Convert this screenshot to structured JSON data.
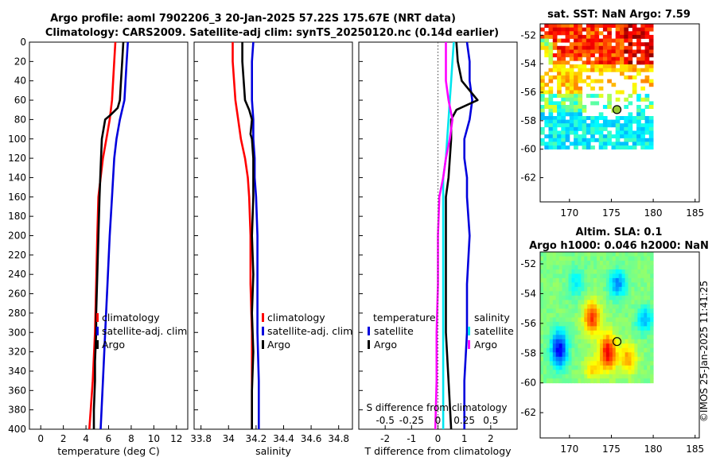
{
  "titles": {
    "line1": "Argo profile: aoml 7902206_3 20-Jan-2025 57.22S 175.67E (NRT data)",
    "line2": "Climatology: CARS2009. Satellite-adj clim: synTS_20250120.nc (0.14d earlier)",
    "sst_map": "sat. SST: NaN Argo: 7.59",
    "sla_line1": "Altim. SLA: 0.1",
    "sla_line2": "Argo h1000: 0.046 h2000: NaN"
  },
  "watermark": "©IMOS 25-Jan-2025 11:41:25",
  "colors": {
    "climatology": "#ff0000",
    "satellite": "#0000dd",
    "argo": "#000000",
    "temp_sat_diff": "#0000dd",
    "sal_sat_diff": "#00e5ee",
    "sal_argo_diff": "#ff00ff"
  },
  "chart_data": [
    {
      "type": "line",
      "id": "temperature",
      "xlabel": "temperature (deg C)",
      "ylabel": "",
      "xlim": [
        -1,
        13
      ],
      "ylim": [
        400,
        0
      ],
      "xticks": [
        "0",
        "2",
        "4",
        "6",
        "8",
        "10",
        "12"
      ],
      "xtick_values": [
        0,
        2,
        4,
        6,
        8,
        10,
        12
      ],
      "yticks": [
        "0",
        "20",
        "40",
        "60",
        "80",
        "100",
        "120",
        "140",
        "160",
        "180",
        "200",
        "220",
        "240",
        "260",
        "280",
        "300",
        "320",
        "340",
        "360",
        "380",
        "400"
      ],
      "ytick_values": [
        0,
        20,
        40,
        60,
        80,
        100,
        120,
        140,
        160,
        180,
        200,
        220,
        240,
        260,
        280,
        300,
        320,
        340,
        360,
        380,
        400
      ],
      "legend": [
        "climatology",
        "satellite-adj. clim",
        "Argo"
      ],
      "series": [
        {
          "name": "climatology",
          "key": "climatology",
          "x": [
            6.6,
            6.5,
            6.4,
            6.3,
            6.1,
            5.8,
            5.5,
            5.3,
            5.1,
            5.0,
            4.9,
            4.8,
            4.6,
            4.3
          ],
          "y": [
            0,
            20,
            40,
            60,
            80,
            100,
            120,
            140,
            160,
            200,
            250,
            300,
            350,
            400
          ]
        },
        {
          "name": "satellite-adj. clim",
          "key": "satellite",
          "x": [
            7.7,
            7.6,
            7.5,
            7.4,
            7.0,
            6.7,
            6.5,
            6.4,
            6.3,
            6.1,
            5.9,
            5.7,
            5.5,
            5.3
          ],
          "y": [
            0,
            20,
            40,
            60,
            80,
            100,
            120,
            140,
            160,
            200,
            250,
            300,
            350,
            400
          ]
        },
        {
          "name": "Argo",
          "key": "argo",
          "x": [
            7.3,
            7.2,
            7.1,
            7.0,
            6.8,
            6.2,
            5.7,
            5.4,
            5.3,
            5.2,
            5.1,
            5.0,
            4.9,
            4.9,
            4.8,
            4.8,
            4.7,
            4.7
          ],
          "y": [
            0,
            20,
            40,
            60,
            68,
            75,
            80,
            100,
            130,
            160,
            200,
            240,
            280,
            300,
            330,
            350,
            380,
            400
          ]
        }
      ]
    },
    {
      "type": "line",
      "id": "salinity",
      "xlabel": "salinity",
      "xlim": [
        33.75,
        34.9
      ],
      "ylim": [
        400,
        0
      ],
      "xticks": [
        "33.8",
        "34",
        "34.2",
        "34.4",
        "34.6",
        "34.8"
      ],
      "xtick_values": [
        33.8,
        34.0,
        34.2,
        34.4,
        34.6,
        34.8
      ],
      "legend": [
        "climatology",
        "satellite-adj. clim",
        "Argo"
      ],
      "series": [
        {
          "name": "climatology",
          "key": "climatology",
          "x": [
            34.03,
            34.03,
            34.04,
            34.05,
            34.07,
            34.09,
            34.12,
            34.14,
            34.15,
            34.16,
            34.16,
            34.17,
            34.17,
            34.17
          ],
          "y": [
            0,
            20,
            40,
            60,
            80,
            100,
            120,
            140,
            160,
            200,
            250,
            300,
            350,
            400
          ]
        },
        {
          "name": "satellite-adj. clim",
          "key": "satellite",
          "x": [
            34.18,
            34.17,
            34.17,
            34.17,
            34.18,
            34.18,
            34.19,
            34.19,
            34.2,
            34.21,
            34.21,
            34.21,
            34.22,
            34.22
          ],
          "y": [
            0,
            20,
            40,
            60,
            80,
            100,
            120,
            140,
            160,
            200,
            250,
            300,
            350,
            400
          ]
        },
        {
          "name": "Argo",
          "key": "argo",
          "x": [
            34.1,
            34.1,
            34.11,
            34.12,
            34.15,
            34.17,
            34.16,
            34.17,
            34.18,
            34.18,
            34.17,
            34.18,
            34.17,
            34.18,
            34.17,
            34.17
          ],
          "y": [
            0,
            20,
            40,
            60,
            70,
            80,
            95,
            100,
            120,
            160,
            200,
            240,
            280,
            320,
            360,
            400
          ]
        }
      ]
    },
    {
      "type": "line",
      "id": "difference",
      "xlabel": "T difference from climatology",
      "xlabel_top": "S difference from climatology",
      "xlim": [
        -3,
        3
      ],
      "ylim": [
        400,
        0
      ],
      "xticks": [
        "-2",
        "-1",
        "0",
        "1",
        "2"
      ],
      "xtick_values": [
        -2,
        -1,
        0,
        1,
        2
      ],
      "sticks": [
        "-0.5",
        "-0.25",
        "0",
        "0.25",
        "0.5"
      ],
      "stick_values": [
        -2,
        -1,
        0,
        1,
        2
      ],
      "legend_temperature": {
        "title": "temperature",
        "items": [
          "satellite",
          "Argo"
        ]
      },
      "legend_salinity": {
        "title": "salinity",
        "items": [
          "satellite",
          "Argo"
        ]
      },
      "series": [
        {
          "name": "T satellite",
          "key": "temp_sat_diff",
          "x": [
            1.1,
            1.2,
            1.2,
            1.3,
            1.2,
            1.0,
            1.0,
            1.1,
            1.1,
            1.2,
            1.1,
            1.1,
            1.0,
            1.0
          ],
          "y": [
            0,
            20,
            40,
            60,
            80,
            100,
            120,
            140,
            160,
            200,
            250,
            300,
            350,
            400
          ]
        },
        {
          "name": "T Argo",
          "key": "argo",
          "x": [
            0.7,
            0.75,
            0.9,
            1.5,
            0.7,
            0.5,
            0.5,
            0.4,
            0.3,
            0.3,
            0.3,
            0.3,
            0.4,
            0.5
          ],
          "y": [
            0,
            20,
            40,
            60,
            70,
            80,
            100,
            140,
            160,
            200,
            250,
            300,
            350,
            400
          ]
        },
        {
          "name": "S satellite",
          "key": "sal_sat_diff",
          "x": [
            0.6,
            0.55,
            0.5,
            0.45,
            0.4,
            0.35,
            0.3,
            0.2,
            0.2,
            0.2,
            0.2,
            0.2,
            0.2,
            0.2
          ],
          "y": [
            0,
            20,
            40,
            60,
            80,
            100,
            120,
            140,
            160,
            200,
            250,
            300,
            350,
            400
          ]
        },
        {
          "name": "S Argo",
          "key": "sal_argo_diff",
          "x": [
            0.3,
            0.3,
            0.3,
            0.4,
            0.55,
            0.45,
            0.3,
            0.2,
            0.05,
            0.0,
            0.0,
            -0.05,
            -0.05,
            -0.1
          ],
          "y": [
            0,
            20,
            40,
            60,
            80,
            100,
            120,
            140,
            160,
            200,
            250,
            300,
            350,
            400
          ]
        }
      ]
    },
    {
      "type": "heatmap",
      "id": "sst_map",
      "xlim": [
        166.5,
        185.5
      ],
      "ylim": [
        -63.7,
        -51.2
      ],
      "xticks": [
        "170",
        "175",
        "180",
        "185"
      ],
      "xtick_values": [
        170,
        175,
        180,
        185
      ],
      "yticks": [
        "-52",
        "-54",
        "-56",
        "-58",
        "-60",
        "-62"
      ],
      "ytick_values": [
        -52,
        -54,
        -56,
        -58,
        -60,
        -62
      ],
      "data_extent": {
        "lon": [
          166.5,
          180
        ],
        "lat": [
          -60,
          -51.2
        ]
      },
      "float_position": {
        "lon": 175.67,
        "lat": -57.22
      }
    },
    {
      "type": "heatmap",
      "id": "sla_map",
      "xlim": [
        166.5,
        185.5
      ],
      "ylim": [
        -63.7,
        -51.2
      ],
      "xticks": [
        "170",
        "175",
        "180",
        "185"
      ],
      "xtick_values": [
        170,
        175,
        180,
        185
      ],
      "yticks": [
        "-52",
        "-54",
        "-56",
        "-58",
        "-60",
        "-62"
      ],
      "ytick_values": [
        -52,
        -54,
        -56,
        -58,
        -60,
        -62
      ],
      "data_extent": {
        "lon": [
          166.5,
          180
        ],
        "lat": [
          -60,
          -51.2
        ]
      },
      "float_position": {
        "lon": 175.67,
        "lat": -57.22
      }
    }
  ]
}
